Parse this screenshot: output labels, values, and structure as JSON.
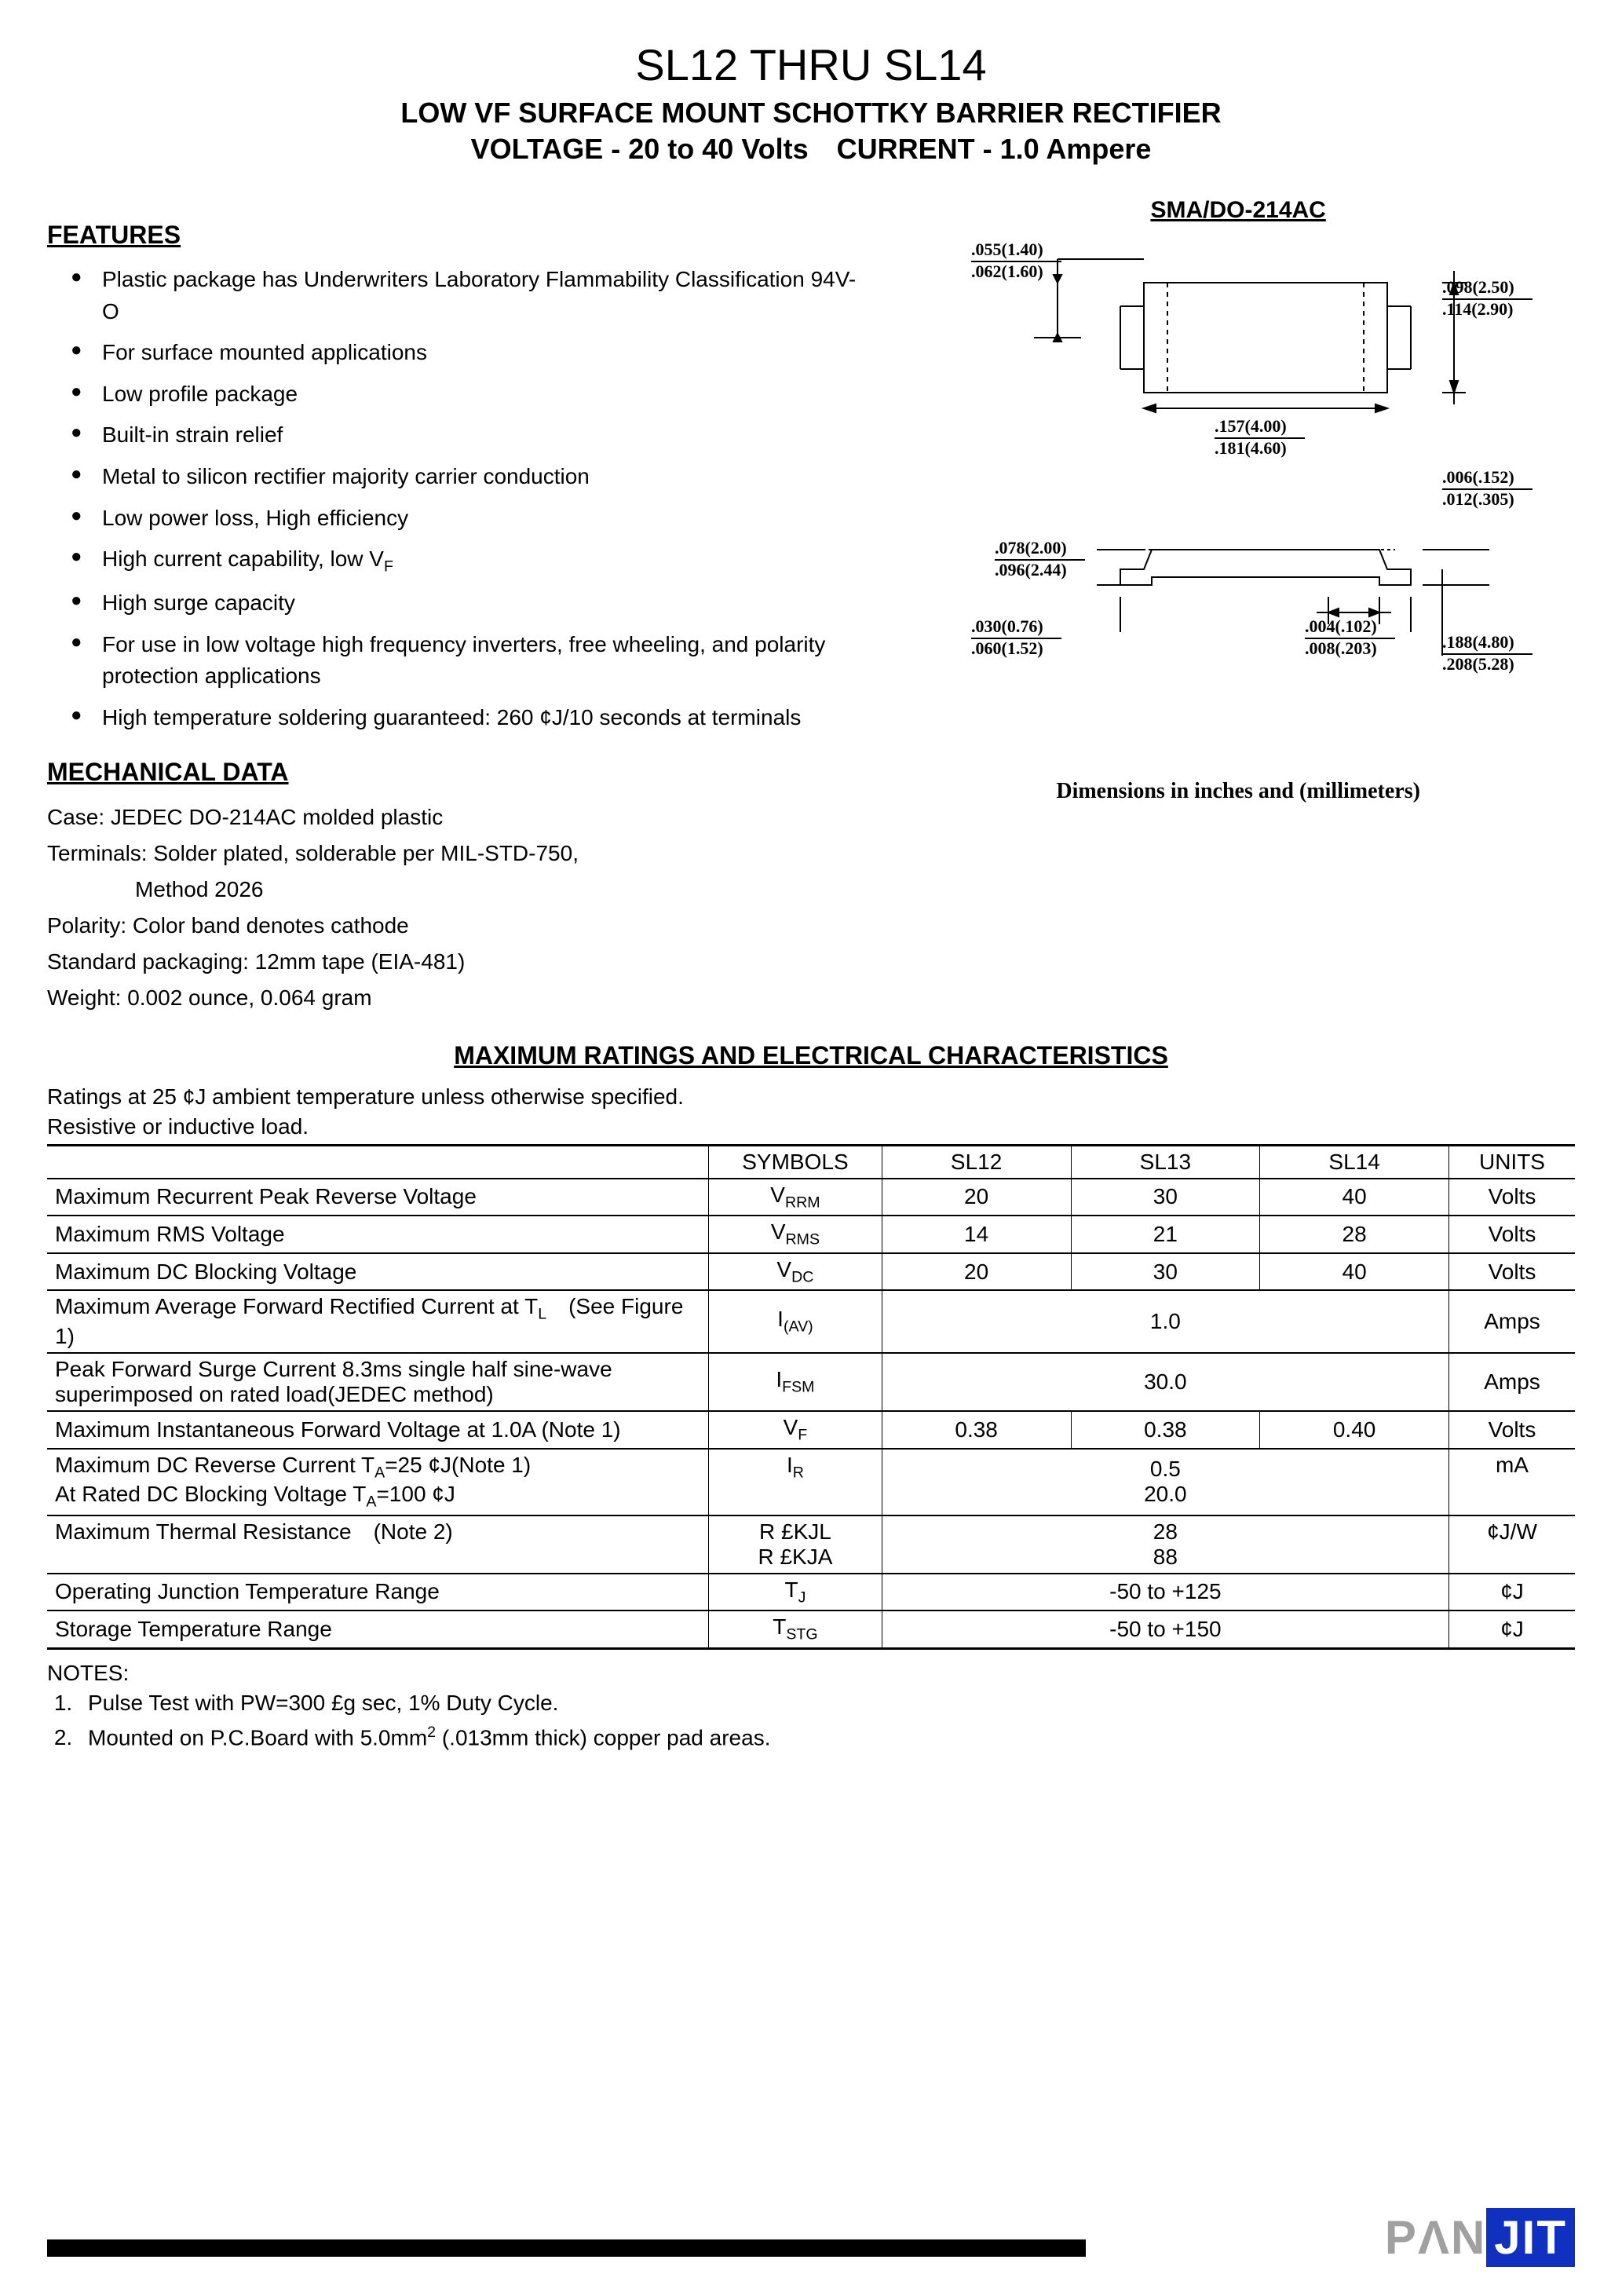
{
  "title": {
    "main": "SL12 THRU SL14",
    "sub1": "LOW VF SURFACE MOUNT SCHOTTKY BARRIER RECTIFIER",
    "sub2": "VOLTAGE - 20 to 40 Volts CURRENT - 1.0 Ampere"
  },
  "sections": {
    "features": "FEATURES",
    "mechanical": "MECHANICAL DATA",
    "ratings": "MAXIMUM RATINGS AND ELECTRICAL CHARACTERISTICS"
  },
  "features": [
    "Plastic package has Underwriters Laboratory Flammability Classification 94V-O",
    "For surface mounted applications",
    "Low profile package",
    "Built-in strain relief",
    "Metal to silicon rectifier majority carrier conduction",
    "Low power loss, High efficiency",
    "High current capability, low V",
    "High surge capacity",
    "For use in low voltage high frequency inverters, free wheeling, and polarity protection applications",
    "High temperature soldering guaranteed: 260 ¢J/10 seconds at terminals"
  ],
  "feature_vf_sub": "F",
  "mechanical": {
    "case": "Case: JEDEC DO-214AC molded plastic",
    "terminals1": "Terminals: Solder plated, solderable per MIL-STD-750,",
    "terminals2": "    Method 2026",
    "polarity": "Polarity: Color band denotes cathode",
    "packaging": "Standard packaging: 12mm tape (EIA-481)",
    "weight": "Weight: 0.002 ounce, 0.064 gram"
  },
  "package": {
    "label": "SMA/DO-214AC",
    "caption": "Dimensions in inches and (millimeters)",
    "dims": {
      "d1t": ".055(1.40)",
      "d1b": ".062(1.60)",
      "d2t": ".098(2.50)",
      "d2b": ".114(2.90)",
      "d3t": ".157(4.00)",
      "d3b": ".181(4.60)",
      "d4t": ".006(.152)",
      "d4b": ".012(.305)",
      "d5t": ".078(2.00)",
      "d5b": ".096(2.44)",
      "d6t": ".030(0.76)",
      "d6b": ".060(1.52)",
      "d7t": ".004(.102)",
      "d7b": ".008(.203)",
      "d8t": ".188(4.80)",
      "d8b": ".208(5.28)"
    }
  },
  "ratings_intro": {
    "line1": "Ratings at 25 ¢J  ambient temperature unless otherwise specified.",
    "line2": "Resistive or inductive load."
  },
  "table": {
    "columns": [
      "",
      "SYMBOLS",
      "SL12",
      "SL13",
      "SL14",
      "UNITS"
    ],
    "col_widths": [
      "42%",
      "11%",
      "12%",
      "12%",
      "12%",
      "8%"
    ]
  },
  "rows": [
    {
      "param": "Maximum Recurrent Peak Reverse Voltage",
      "sym": "V",
      "sub": "RRM",
      "v": [
        "20",
        "30",
        "40"
      ],
      "unit": "Volts"
    },
    {
      "param": "Maximum RMS Voltage",
      "sym": "V",
      "sub": "RMS",
      "v": [
        "14",
        "21",
        "28"
      ],
      "unit": "Volts"
    },
    {
      "param": "Maximum DC Blocking Voltage",
      "sym": "V",
      "sub": "DC",
      "v": [
        "20",
        "30",
        "40"
      ],
      "unit": "Volts"
    }
  ],
  "merged_rows": [
    {
      "param": "Maximum Average Forward Rectified Current at T<sub>L</sub> (See Figure 1)",
      "sym": "I",
      "sub": "(AV)",
      "val": "1.0",
      "unit": "Amps"
    },
    {
      "param": "Peak Forward Surge Current 8.3ms single half sine-wave superimposed on rated load(JEDEC method)",
      "sym": "I",
      "sub": "FSM",
      "val": "30.0",
      "unit": "Amps"
    }
  ],
  "vf_row": {
    "param": "Maximum Instantaneous Forward Voltage at 1.0A (Note 1)",
    "sym": "V",
    "sub": "F",
    "v": [
      "0.38",
      "0.38",
      "0.40"
    ],
    "unit": "Volts"
  },
  "ir_row": {
    "param1": "Maximum DC Reverse Current T<sub>A</sub>=25 ¢J(Note 1)",
    "param2": "At Rated DC Blocking Voltage T<sub>A</sub>=100 ¢J",
    "sym": "I",
    "sub": "R",
    "v1": "0.5",
    "v2": "20.0",
    "unit": "mA"
  },
  "thermal_row": {
    "param": "Maximum Thermal Resistance (Note 2)",
    "sym1": "R £KJL",
    "sym2": "R £KJA",
    "v1": "28",
    "v2": "88",
    "unit": "¢J/W"
  },
  "tj_row": {
    "param": "Operating Junction Temperature Range",
    "sym": "T",
    "sub": "J",
    "val": "-50 to +125",
    "unit": "¢J"
  },
  "tstg_row": {
    "param": "Storage Temperature Range",
    "sym": "T",
    "sub": "STG",
    "val": "-50 to +150",
    "unit": "¢J"
  },
  "notes": {
    "heading": "NOTES:",
    "n1": "Pulse Test with PW=300 £g sec, 1% Duty Cycle.",
    "n2": "Mounted on P.C.Board with 5.0mm"
  },
  "n2_sup": "2",
  "n2_tail": " (.013mm thick) copper pad areas.",
  "logo": {
    "pan": "PΛN",
    "jit": "JIT"
  }
}
